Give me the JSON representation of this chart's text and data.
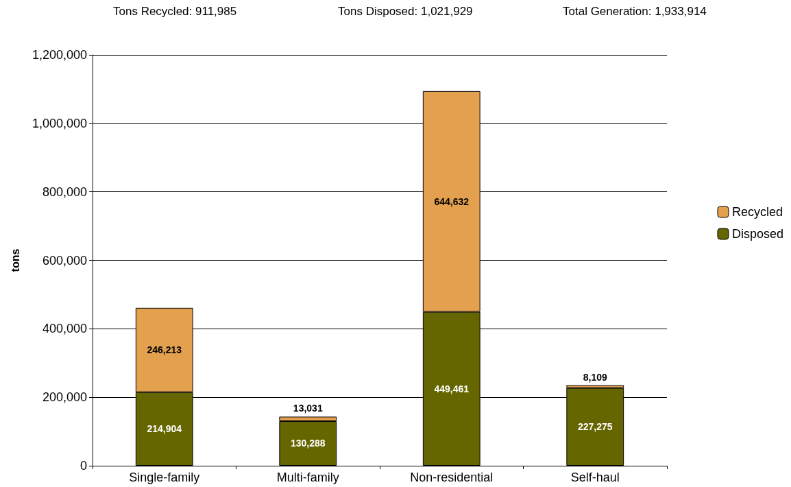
{
  "chart_data": {
    "type": "bar",
    "stacked": true,
    "annotations": [
      "Tons Recycled: 911,985",
      "Tons Disposed: 1,021,929",
      "Total Generation: 1,933,914"
    ],
    "ylabel": "tons",
    "categories": [
      "Single-family",
      "Multi-family",
      "Non-residential",
      "Self-haul"
    ],
    "series": [
      {
        "name": "Disposed",
        "color": "#666600",
        "values": [
          214904,
          130288,
          449461,
          227275
        ],
        "value_labels": [
          "214,904",
          "130,288",
          "449,461",
          "227,275"
        ]
      },
      {
        "name": "Recycled",
        "color": "#e3a04e",
        "values": [
          246213,
          13031,
          644632,
          8109
        ],
        "value_labels": [
          "246,213",
          "13,031",
          "644,632",
          "8,109"
        ]
      }
    ],
    "ylim": [
      0,
      1200000
    ],
    "yticks": [
      0,
      {
        "value": 200000,
        "label": "200,000"
      },
      {
        "value": 400000,
        "label": "400,000"
      },
      {
        "value": 600000,
        "label": "600,000"
      },
      {
        "value": 800000,
        "label": "800,000"
      },
      {
        "value": 1000000,
        "label": "1,000,000"
      },
      {
        "value": 1200000,
        "label": "1,200,000"
      }
    ],
    "grid": "y",
    "legend": "right"
  }
}
